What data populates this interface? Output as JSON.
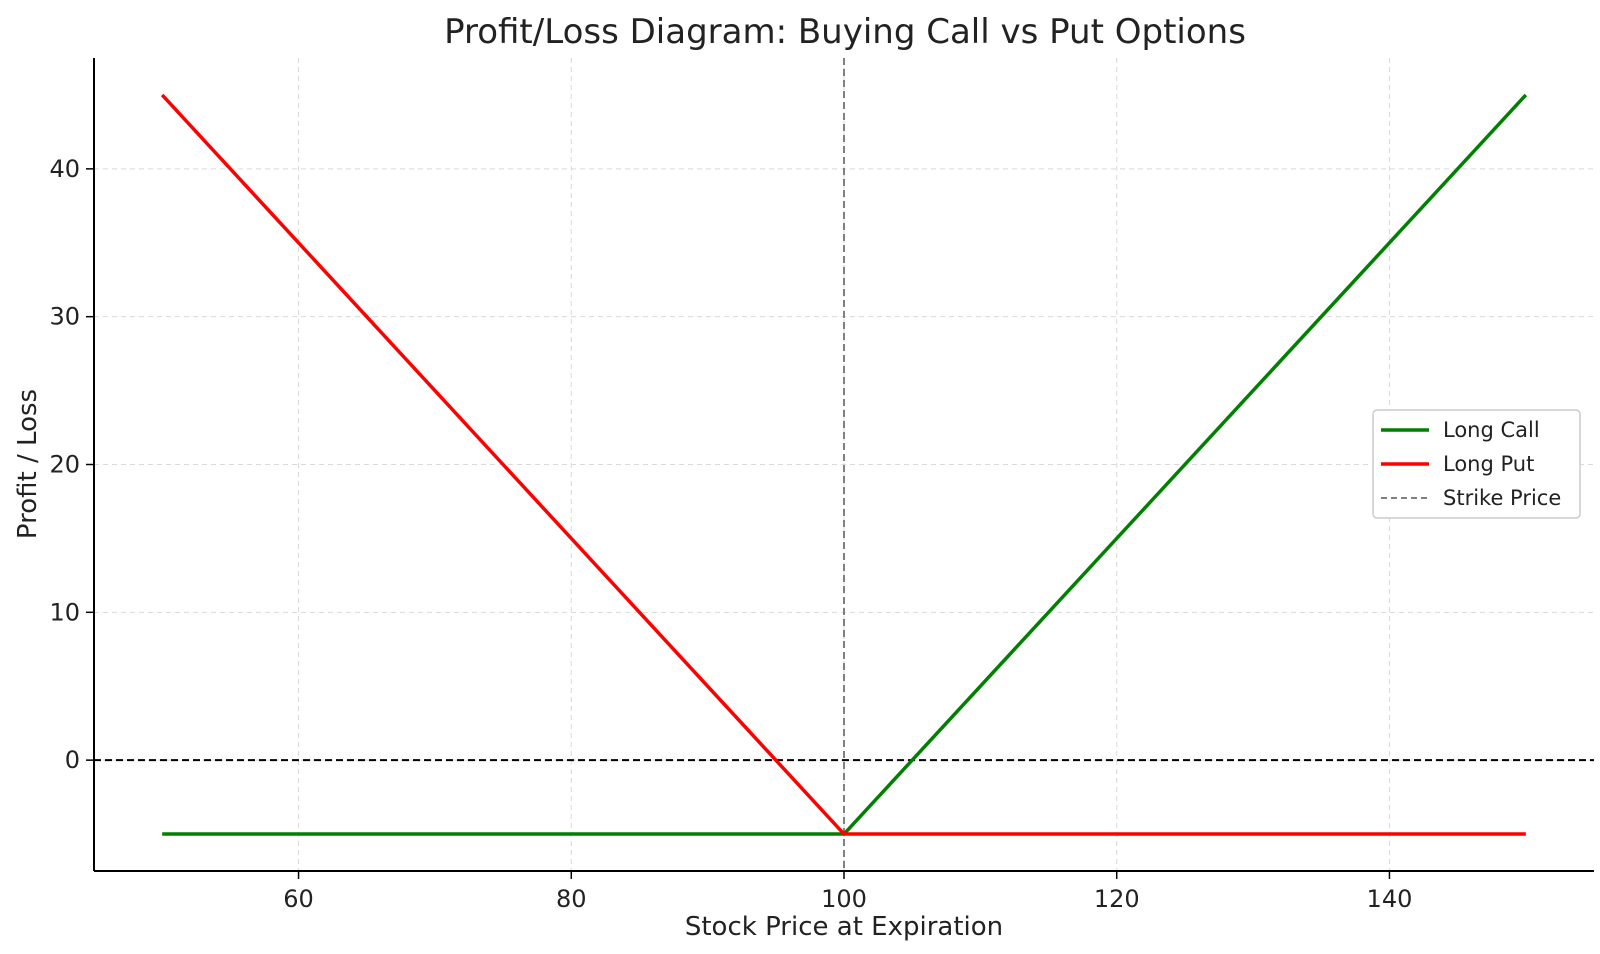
{
  "chart_data": {
    "type": "line",
    "title": "Profit/Loss Diagram: Buying Call vs Put Options",
    "xlabel": "Stock Price at Expiration",
    "ylabel": "Profit / Loss",
    "xlim": [
      45,
      155
    ],
    "ylim": [
      -7.5,
      47.5
    ],
    "xticks": [
      60,
      80,
      100,
      120,
      140
    ],
    "yticks": [
      0,
      10,
      20,
      30,
      40
    ],
    "grid": true,
    "legend_position": "center-right",
    "series": [
      {
        "name": "Long Call",
        "color": "#008000",
        "style": "solid",
        "x": [
          50,
          100,
          150
        ],
        "y": [
          -5,
          -5,
          45
        ]
      },
      {
        "name": "Long Put",
        "color": "#ff0000",
        "style": "solid",
        "x": [
          50,
          100,
          150
        ],
        "y": [
          45,
          -5,
          -5
        ]
      }
    ],
    "reference_lines": [
      {
        "name": "Strike Price",
        "orientation": "vertical",
        "value": 100,
        "color": "#808080",
        "style": "dashed",
        "in_legend": true
      },
      {
        "name": "",
        "orientation": "horizontal",
        "value": 0,
        "color": "#000000",
        "style": "dashed",
        "in_legend": false
      }
    ]
  }
}
